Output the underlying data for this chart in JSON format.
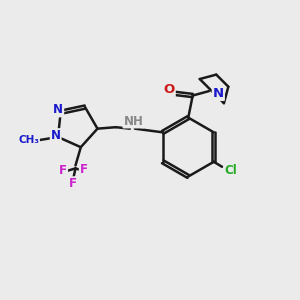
{
  "bg_color": "#ebebeb",
  "bond_color": "#1a1a1a",
  "bond_width": 1.8,
  "dbo": 0.055,
  "atom_colors": {
    "N": "#1a1acc",
    "O": "#cc1a1a",
    "Cl": "#22aa22",
    "F": "#cc22cc",
    "NH": "#888888"
  },
  "figsize": [
    3.0,
    3.0
  ],
  "dpi": 100
}
